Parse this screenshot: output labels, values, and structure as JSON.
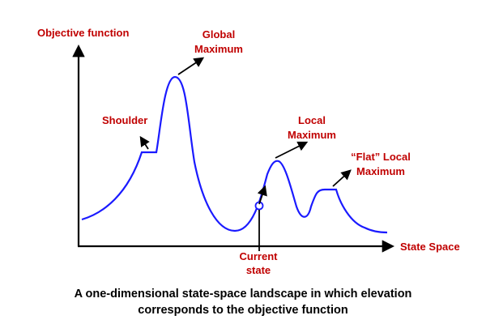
{
  "diagram": {
    "axes": {
      "y_label": "Objective function",
      "x_label": "State Space"
    },
    "annotations": {
      "global_max": [
        "Global",
        "Maximum"
      ],
      "shoulder": "Shoulder",
      "local_max": [
        "Local",
        "Maximum"
      ],
      "flat_local_max": [
        "“Flat” Local",
        "Maximum"
      ],
      "current_state": [
        "Current",
        "state"
      ]
    },
    "caption": [
      "A one-dimensional state-space landscape in which elevation",
      "corresponds to the objective function"
    ],
    "colors": {
      "curve": "#1a1aff",
      "label_text": "#c00000",
      "axis": "#000000"
    }
  }
}
